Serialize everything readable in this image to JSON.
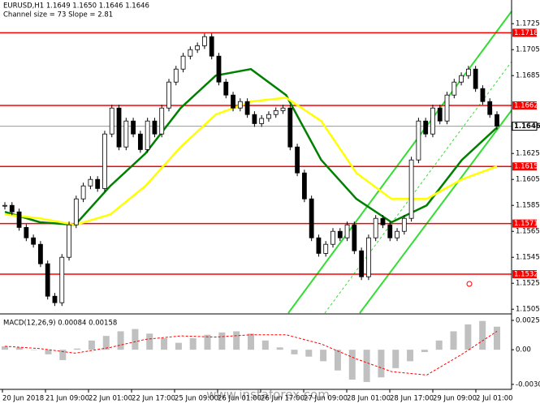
{
  "chart_data": {
    "type": "candlestick",
    "title": "EURUSD,H1  1.1649 1.1650 1.1646 1.1646",
    "subtitle": "Channel size = 73 Slope = 2.81",
    "watermark": "www.instaforex.com",
    "x_labels": [
      "20 Jun 2018",
      "21 Jun 09:00",
      "22 Jun 01:00",
      "22 Jun 17:00",
      "25 Jun 09:00",
      "26 Jun 01:00",
      "26 Jun 17:00",
      "27 Jun 09:00",
      "28 Jun 01:00",
      "28 Jun 17:00",
      "29 Jun 09:00",
      "2 Jul 01:00"
    ],
    "closes": [
      1.1585,
      1.158,
      1.1568,
      1.156,
      1.1555,
      1.154,
      1.1515,
      1.151,
      1.1545,
      1.157,
      1.159,
      1.16,
      1.1605,
      1.1598,
      1.164,
      1.166,
      1.163,
      1.165,
      1.164,
      1.1628,
      1.165,
      1.164,
      1.166,
      1.168,
      1.169,
      1.17,
      1.1705,
      1.1708,
      1.1715,
      1.17,
      1.168,
      1.167,
      1.166,
      1.1665,
      1.1655,
      1.1648,
      1.1652,
      1.1655,
      1.1658,
      1.166,
      1.163,
      1.161,
      1.159,
      1.156,
      1.1548,
      1.1555,
      1.1565,
      1.156,
      1.157,
      1.155,
      1.153,
      1.156,
      1.1575,
      1.157,
      1.156,
      1.1565,
      1.1575,
      1.162,
      1.165,
      1.164,
      1.166,
      1.165,
      1.167,
      1.168,
      1.1685,
      1.169,
      1.1675,
      1.1665,
      1.1655,
      1.1646
    ],
    "ylim": [
      1.1502,
      1.1742
    ],
    "yticks": [
      1.1725,
      1.1705,
      1.1685,
      1.1625,
      1.1605,
      1.1585,
      1.1565,
      1.1545,
      1.1525,
      1.1505
    ],
    "levels": {
      "color": "#ff0000",
      "values": [
        1.1718,
        1.1662,
        1.1615,
        1.1571,
        1.1532
      ]
    },
    "last_price": 1.1646,
    "moving_averages": [
      {
        "color": "#008000",
        "values": [
          1.158,
          1.1572,
          1.157,
          1.16,
          1.1625,
          1.166,
          1.1685,
          1.169,
          1.167,
          1.162,
          1.159,
          1.1572,
          1.1585,
          1.162,
          1.1645
        ]
      },
      {
        "color": "#ffff00",
        "values": [
          1.1578,
          1.1575,
          1.157,
          1.1578,
          1.16,
          1.163,
          1.1655,
          1.1665,
          1.1668,
          1.165,
          1.161,
          1.159,
          1.159,
          1.1605,
          1.1615
        ]
      }
    ],
    "macd": {
      "label": "MACD(12,26,9) 0.00084 0.00158",
      "histogram": [
        0.0003,
        0.0002,
        0.0,
        -0.0004,
        -0.0009,
        0.0001,
        0.0008,
        0.0012,
        0.0016,
        0.0018,
        0.0014,
        0.001,
        0.0006,
        0.001,
        0.0013,
        0.0015,
        0.0016,
        0.0014,
        0.0008,
        0.0002,
        -0.0004,
        -0.0006,
        -0.001,
        -0.0018,
        -0.0026,
        -0.0028,
        -0.0024,
        -0.0016,
        -0.001,
        -0.0002,
        0.0008,
        0.0016,
        0.0022,
        0.0025,
        0.002
      ],
      "signal": [
        0.0003,
        0.0001,
        -0.0003,
        0.0002,
        0.0009,
        0.0012,
        0.0011,
        0.0013,
        0.0013,
        0.0005,
        -0.0008,
        -0.0019,
        -0.0022,
        -0.0004,
        0.0016
      ],
      "ylim": [
        -0.0033,
        0.0029
      ],
      "yticks": [
        0.00255,
        {
          "value": 0,
          "label": "0.00"
        },
        -0.00301
      ],
      "hist_color": "#c0c0c0",
      "signal_color": "#ff0000"
    }
  }
}
